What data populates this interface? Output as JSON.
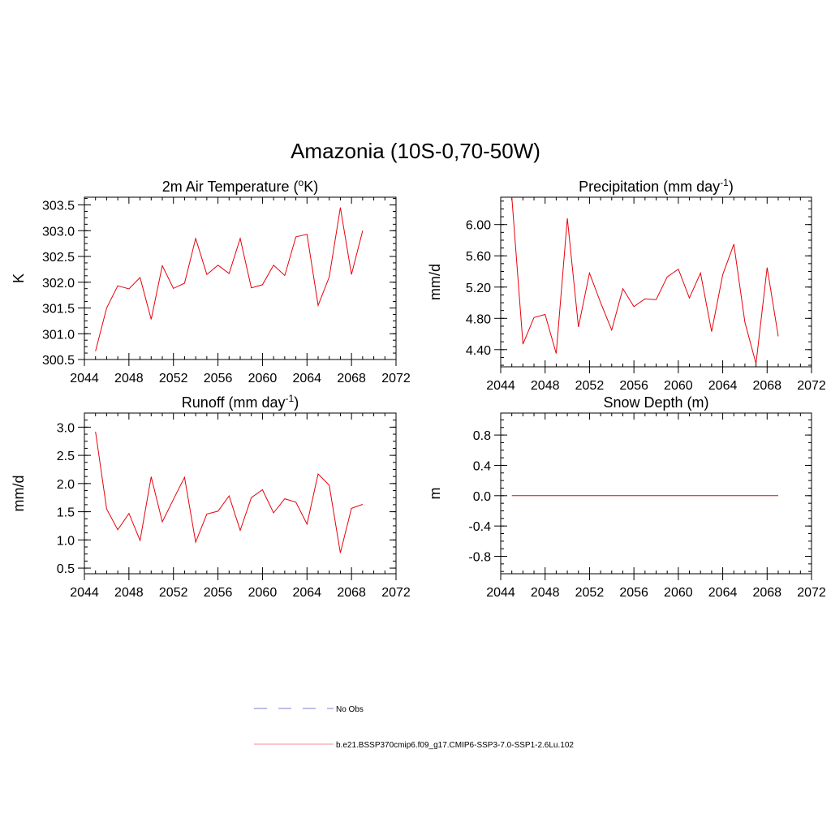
{
  "title": "Amazonia (10S-0,70-50W)",
  "colors": {
    "model": "#e8000b",
    "obs": "#9999dd",
    "frame": "#000000"
  },
  "legend": {
    "obs_label": "No Obs",
    "model_label": "b.e21.BSSP370cmip6.f09_g17.CMIP6-SSP3-7.0-SSP1-2.6Lu.102"
  },
  "chart_data": [
    {
      "type": "line",
      "title": "2m Air Temperature (",
      "title_sup": "o",
      "title_end": "K)",
      "ylabel": "K",
      "xlim": [
        2044,
        2072
      ],
      "ylim": [
        300.5,
        303.65
      ],
      "xticks": [
        "2044",
        "2048",
        "2052",
        "2056",
        "2060",
        "2064",
        "2068",
        "2072"
      ],
      "yticks": [
        "300.5",
        "301.0",
        "301.5",
        "302.0",
        "302.5",
        "303.0",
        "303.5"
      ],
      "x": [
        2045,
        2046,
        2047,
        2048,
        2049,
        2050,
        2051,
        2052,
        2053,
        2054,
        2055,
        2056,
        2057,
        2058,
        2059,
        2060,
        2061,
        2062,
        2063,
        2064,
        2065,
        2066,
        2067,
        2068,
        2069
      ],
      "series": [
        {
          "values": [
            300.66,
            301.5,
            301.93,
            301.87,
            302.09,
            301.28,
            302.32,
            301.88,
            301.98,
            302.85,
            302.15,
            302.33,
            302.17,
            302.85,
            301.89,
            301.95,
            302.33,
            302.13,
            302.88,
            302.93,
            301.55,
            302.1,
            303.45,
            302.15,
            303.0
          ]
        }
      ]
    },
    {
      "type": "line",
      "title": "Precipitation (mm day",
      "title_sup": "-1",
      "title_end": ")",
      "ylabel": "mm/d",
      "xlim": [
        2044,
        2072
      ],
      "ylim": [
        4.18,
        6.35
      ],
      "xticks": [
        "2044",
        "2048",
        "2052",
        "2056",
        "2060",
        "2064",
        "2068",
        "2072"
      ],
      "yticks": [
        "4.40",
        "4.80",
        "5.20",
        "5.60",
        "6.00"
      ],
      "x": [
        2045,
        2046,
        2047,
        2048,
        2049,
        2050,
        2051,
        2052,
        2053,
        2054,
        2055,
        2056,
        2057,
        2058,
        2059,
        2060,
        2061,
        2062,
        2063,
        2064,
        2065,
        2066,
        2067,
        2068,
        2069
      ],
      "series": [
        {
          "values": [
            6.35,
            4.47,
            4.81,
            4.85,
            4.35,
            6.08,
            4.69,
            5.38,
            5.0,
            4.65,
            5.18,
            4.95,
            5.05,
            5.04,
            5.33,
            5.43,
            5.06,
            5.38,
            4.63,
            5.36,
            5.75,
            4.75,
            4.22,
            5.45,
            4.57
          ]
        }
      ]
    },
    {
      "type": "line",
      "title": "Runoff (mm day",
      "title_sup": "-1",
      "title_end": ")",
      "ylabel": "mm/d",
      "xlim": [
        2044,
        2072
      ],
      "ylim": [
        0.4,
        3.25
      ],
      "xticks": [
        "2044",
        "2048",
        "2052",
        "2056",
        "2060",
        "2064",
        "2068",
        "2072"
      ],
      "yticks": [
        "0.5",
        "1.0",
        "1.5",
        "2.0",
        "2.5",
        "3.0"
      ],
      "x": [
        2045,
        2046,
        2047,
        2048,
        2049,
        2050,
        2051,
        2052,
        2053,
        2054,
        2055,
        2056,
        2057,
        2058,
        2059,
        2060,
        2061,
        2062,
        2063,
        2064,
        2065,
        2066,
        2067,
        2068,
        2069
      ],
      "series": [
        {
          "values": [
            2.92,
            1.55,
            1.18,
            1.47,
            0.99,
            2.12,
            1.32,
            1.72,
            2.11,
            0.96,
            1.46,
            1.51,
            1.78,
            1.17,
            1.75,
            1.89,
            1.48,
            1.73,
            1.67,
            1.28,
            2.17,
            1.97,
            0.77,
            1.56,
            1.63
          ]
        }
      ]
    },
    {
      "type": "line",
      "title": "Snow Depth (m)",
      "title_sup": "",
      "title_end": "",
      "ylabel": "m",
      "xlim": [
        2044,
        2072
      ],
      "ylim": [
        -1.03,
        1.09
      ],
      "xticks": [
        "2044",
        "2048",
        "2052",
        "2056",
        "2060",
        "2064",
        "2068",
        "2072"
      ],
      "yticks": [
        "-0.8",
        "-0.4",
        "0.0",
        "0.4",
        "0.8"
      ],
      "x": [
        2045,
        2046,
        2047,
        2048,
        2049,
        2050,
        2051,
        2052,
        2053,
        2054,
        2055,
        2056,
        2057,
        2058,
        2059,
        2060,
        2061,
        2062,
        2063,
        2064,
        2065,
        2066,
        2067,
        2068,
        2069
      ],
      "series": [
        {
          "values": [
            0,
            0,
            0,
            0,
            0,
            0,
            0,
            0,
            0,
            0,
            0,
            0,
            0,
            0,
            0,
            0,
            0,
            0,
            0,
            0,
            0,
            0,
            0,
            0,
            0
          ]
        }
      ]
    }
  ]
}
